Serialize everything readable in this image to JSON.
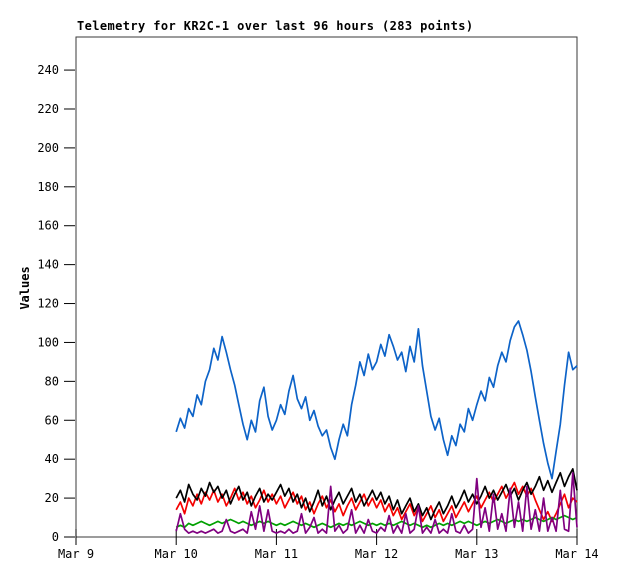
{
  "chart_data": {
    "type": "line",
    "title": "Telemetry for KR2C-1 over last 96 hours (283 points)",
    "xlabel": "",
    "ylabel": "Values",
    "ylim": [
      0,
      257
    ],
    "y_ticks": [
      0,
      20,
      40,
      60,
      80,
      100,
      120,
      140,
      160,
      180,
      200,
      220,
      240
    ],
    "x_ticks": [
      {
        "label": "Mar 9",
        "hour": -24
      },
      {
        "label": "Mar 10",
        "hour": 0
      },
      {
        "label": "Mar 11",
        "hour": 24
      },
      {
        "label": "Mar 12",
        "hour": 48
      },
      {
        "label": "Mar 13",
        "hour": 72
      },
      {
        "label": "Mar 14",
        "hour": 96
      }
    ],
    "x_range_hours": [
      -24,
      96
    ],
    "grid": false,
    "legend": "none",
    "axis_color": "#000000",
    "border_color": "#3a3a3a",
    "background_color": "#ffffff",
    "series": [
      {
        "name": "red",
        "color": "#f40000",
        "start_hour": 0,
        "end_hour": 96,
        "values": [
          14,
          18,
          12,
          20,
          16,
          22,
          17,
          23,
          19,
          24,
          18,
          22,
          16,
          20,
          25,
          19,
          23,
          17,
          21,
          15,
          19,
          24,
          18,
          22,
          17,
          21,
          15,
          19,
          23,
          17,
          21,
          14,
          18,
          12,
          17,
          21,
          15,
          19,
          13,
          17,
          11,
          16,
          20,
          14,
          18,
          22,
          16,
          20,
          15,
          19,
          13,
          17,
          11,
          15,
          9,
          13,
          17,
          11,
          15,
          8,
          12,
          16,
          10,
          14,
          8,
          12,
          16,
          10,
          14,
          18,
          13,
          17,
          21,
          15,
          19,
          23,
          18,
          22,
          26,
          20,
          24,
          28,
          22,
          26,
          21,
          25,
          19,
          14,
          9,
          13,
          8,
          12,
          17,
          22,
          15,
          20,
          18
        ]
      },
      {
        "name": "black",
        "color": "#000000",
        "start_hour": 0,
        "end_hour": 96,
        "values": [
          20,
          24,
          18,
          27,
          22,
          19,
          25,
          21,
          28,
          23,
          26,
          20,
          24,
          17,
          22,
          26,
          19,
          23,
          16,
          21,
          25,
          18,
          22,
          19,
          23,
          27,
          21,
          25,
          18,
          22,
          15,
          20,
          13,
          18,
          24,
          16,
          21,
          14,
          19,
          23,
          17,
          21,
          25,
          18,
          22,
          16,
          20,
          24,
          19,
          23,
          17,
          21,
          14,
          19,
          12,
          16,
          20,
          13,
          17,
          11,
          15,
          9,
          14,
          18,
          12,
          16,
          21,
          15,
          19,
          24,
          18,
          22,
          17,
          21,
          26,
          20,
          24,
          19,
          23,
          27,
          21,
          25,
          19,
          24,
          28,
          22,
          26,
          31,
          24,
          29,
          23,
          28,
          33,
          26,
          31,
          35,
          24
        ]
      },
      {
        "name": "green",
        "color": "#00a000",
        "start_hour": 0,
        "end_hour": 96,
        "values": [
          5,
          6,
          5,
          7,
          6,
          7,
          8,
          7,
          6,
          7,
          8,
          7,
          8,
          9,
          8,
          7,
          8,
          7,
          6,
          7,
          8,
          7,
          8,
          7,
          6,
          7,
          6,
          7,
          8,
          7,
          6,
          7,
          6,
          5,
          6,
          7,
          6,
          5,
          6,
          7,
          6,
          7,
          6,
          7,
          8,
          7,
          6,
          7,
          6,
          7,
          6,
          7,
          6,
          7,
          8,
          7,
          6,
          7,
          6,
          5,
          6,
          5,
          6,
          7,
          6,
          7,
          6,
          7,
          8,
          7,
          8,
          7,
          6,
          7,
          8,
          7,
          8,
          9,
          8,
          7,
          8,
          9,
          8,
          9,
          8,
          9,
          10,
          9,
          8,
          9,
          10,
          9,
          10,
          11,
          10,
          9,
          10
        ]
      },
      {
        "name": "purple",
        "color": "#800080",
        "start_hour": 0,
        "end_hour": 96,
        "values": [
          3,
          12,
          4,
          2,
          3,
          2,
          3,
          2,
          3,
          4,
          2,
          3,
          9,
          3,
          2,
          3,
          4,
          2,
          13,
          4,
          16,
          3,
          14,
          3,
          2,
          3,
          2,
          4,
          2,
          3,
          12,
          2,
          5,
          10,
          2,
          4,
          2,
          26,
          3,
          6,
          2,
          4,
          14,
          2,
          6,
          2,
          9,
          3,
          2,
          5,
          3,
          11,
          2,
          6,
          2,
          12,
          2,
          4,
          16,
          2,
          5,
          2,
          9,
          2,
          4,
          2,
          12,
          3,
          2,
          6,
          2,
          4,
          30,
          5,
          15,
          3,
          22,
          4,
          12,
          3,
          25,
          5,
          18,
          3,
          26,
          4,
          14,
          3,
          20,
          3,
          10,
          3,
          24,
          4,
          3,
          33,
          5
        ]
      },
      {
        "name": "blue",
        "color": "#0d63c8",
        "start_hour": 0,
        "end_hour": 96,
        "values": [
          54,
          61,
          56,
          66,
          62,
          73,
          68,
          80,
          86,
          97,
          91,
          103,
          95,
          86,
          78,
          68,
          58,
          50,
          60,
          54,
          70,
          77,
          62,
          55,
          60,
          68,
          63,
          75,
          83,
          71,
          66,
          72,
          60,
          65,
          57,
          52,
          55,
          46,
          40,
          50,
          58,
          52,
          68,
          78,
          90,
          83,
          94,
          86,
          90,
          99,
          93,
          104,
          98,
          91,
          95,
          85,
          98,
          90,
          107,
          88,
          75,
          62,
          55,
          61,
          50,
          42,
          52,
          47,
          58,
          54,
          66,
          60,
          68,
          75,
          70,
          82,
          77,
          88,
          95,
          90,
          101,
          108,
          111,
          104,
          96,
          85,
          72,
          60,
          48,
          38,
          30,
          44,
          58,
          78,
          95,
          86,
          88
        ]
      }
    ]
  }
}
